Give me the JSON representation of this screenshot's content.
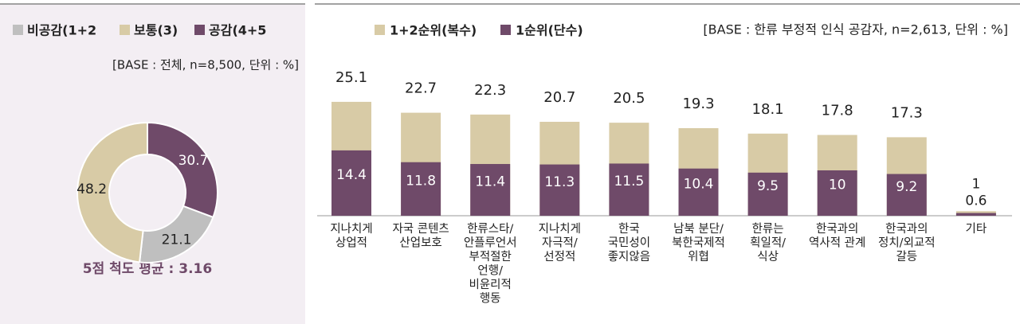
{
  "chart_data": [
    {
      "type": "donut",
      "categories": [
        "비공감(1+2",
        "보통(3)",
        "공감(4+5"
      ],
      "values": [
        21.1,
        48.2,
        30.7
      ],
      "colors": [
        "#bfbfbf",
        "#d8cba6",
        "#6f4a69"
      ],
      "note": "[BASE : 전체, n=8,500, 단위 : %]",
      "footer": "5점 척도 평균 : 3.16"
    },
    {
      "type": "bar",
      "note": "[BASE : 한류 부정적 인식 공감자, n=2,613, 단위 : %]",
      "categories": [
        [
          "지나치게",
          "상업적"
        ],
        [
          "자국 콘텐츠",
          "산업보호"
        ],
        [
          "한류스타/",
          "안플루언서",
          "부적절한",
          "언행/",
          "비윤리적",
          "행동"
        ],
        [
          "지나치게",
          "자극적/",
          "선정적"
        ],
        [
          "한국",
          "국민성이",
          "좋지않음"
        ],
        [
          "남북 분단/",
          "북한국제적",
          "위협"
        ],
        [
          "한류는",
          "획일적/",
          "식상"
        ],
        [
          "한국과의",
          "역사적 관계"
        ],
        [
          "한국과의",
          "정치/외교적",
          "갈등"
        ],
        [
          "기타"
        ]
      ],
      "series": [
        {
          "name": "1+2순위(복수)",
          "color": "#d8cba6",
          "values": [
            25.1,
            22.7,
            22.3,
            20.7,
            20.5,
            19.3,
            18.1,
            17.8,
            17.3,
            1.0
          ]
        },
        {
          "name": "1순위(단수)",
          "color": "#6f4a69",
          "values": [
            14.4,
            11.8,
            11.4,
            11.3,
            11.5,
            10.4,
            9.5,
            10.0,
            9.2,
            0.6
          ]
        }
      ]
    }
  ]
}
